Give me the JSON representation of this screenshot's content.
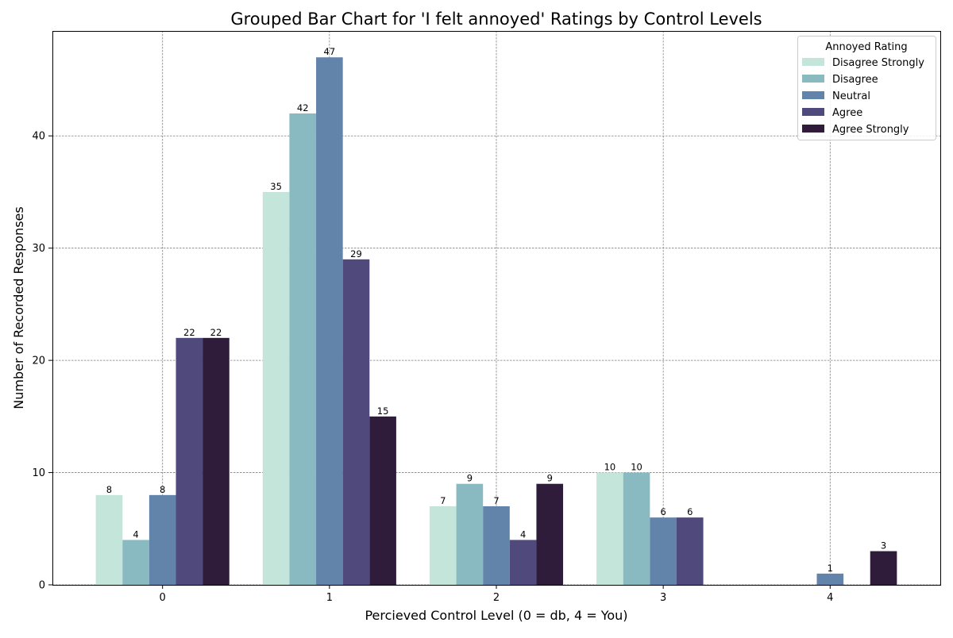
{
  "chart_data": {
    "type": "bar",
    "title": "Grouped Bar Chart for 'I felt annoyed' Ratings by Control Levels",
    "xlabel": "Percieved Control Level (0 = db, 4 = You)",
    "ylabel": "Number of Recorded Responses",
    "categories": [
      "0",
      "1",
      "2",
      "3",
      "4"
    ],
    "ylim": [
      0,
      49.35
    ],
    "yticks": [
      0,
      10,
      20,
      30,
      40
    ],
    "grid": true,
    "legend": {
      "title": "Annoyed Rating",
      "position": "top-right"
    },
    "series": [
      {
        "name": "Disagree Strongly",
        "color": "#c4e6da",
        "values": [
          8,
          35,
          7,
          10,
          0
        ]
      },
      {
        "name": "Disagree",
        "color": "#89bac1",
        "values": [
          4,
          42,
          9,
          10,
          0
        ]
      },
      {
        "name": "Neutral",
        "color": "#6384aa",
        "values": [
          8,
          47,
          7,
          6,
          1
        ]
      },
      {
        "name": "Agree",
        "color": "#4f4a7b",
        "values": [
          22,
          29,
          4,
          6,
          0
        ]
      },
      {
        "name": "Agree Strongly",
        "color": "#2f1c3a",
        "values": [
          22,
          15,
          9,
          0,
          3
        ]
      }
    ]
  }
}
